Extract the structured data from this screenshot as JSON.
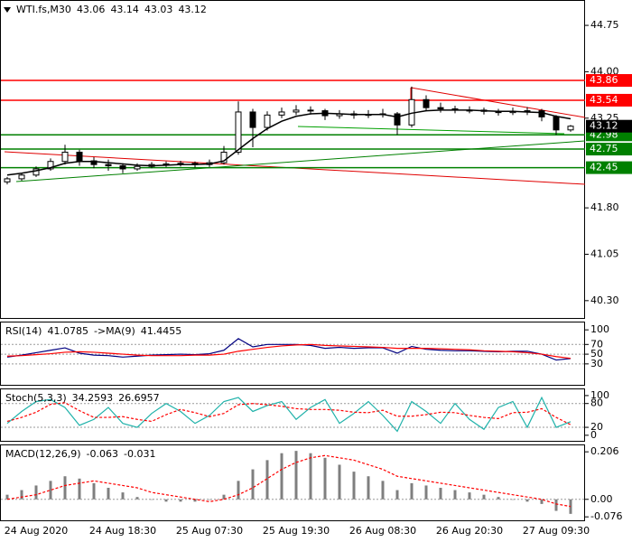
{
  "chart_data": [
    {
      "type": "candlestick",
      "title": "WTI.fs,M30",
      "categories": [
        null,
        null,
        "24 Aug 2020",
        null,
        null,
        null,
        null,
        null,
        "24 Aug 18:30",
        null,
        null,
        null,
        null,
        null,
        "25 Aug 07:30",
        null,
        null,
        null,
        null,
        null,
        "25 Aug 19:30",
        null,
        null,
        null,
        null,
        null,
        "26 Aug 08:30",
        null,
        null,
        null,
        null,
        null,
        "26 Aug 20:30",
        null,
        null,
        null,
        null,
        null,
        "27 Aug 09:30",
        null
      ],
      "open": [
        42.22,
        42.27,
        42.33,
        42.43,
        42.55,
        42.7,
        42.56,
        42.5,
        42.48,
        42.43,
        42.47,
        42.5,
        42.51,
        42.52,
        42.5,
        42.53,
        42.7,
        43.35,
        43.1,
        43.3,
        43.35,
        43.38,
        43.37,
        43.29,
        43.32,
        43.3,
        43.31,
        43.32,
        43.14,
        43.55,
        43.42,
        43.4,
        43.38,
        43.38,
        43.36,
        43.34,
        43.36,
        43.37,
        43.27,
        43.06
      ],
      "high": [
        42.3,
        42.36,
        42.47,
        42.6,
        42.82,
        42.74,
        42.62,
        42.58,
        42.52,
        42.52,
        42.54,
        42.55,
        42.56,
        42.55,
        42.58,
        42.8,
        43.52,
        43.4,
        43.36,
        43.42,
        43.46,
        43.44,
        43.4,
        43.38,
        43.37,
        43.38,
        43.4,
        43.35,
        43.76,
        43.62,
        43.5,
        43.45,
        43.44,
        43.42,
        43.4,
        43.42,
        43.43,
        43.4,
        43.3,
        43.14
      ],
      "low": [
        42.18,
        42.24,
        42.3,
        42.4,
        42.5,
        42.48,
        42.44,
        42.4,
        42.36,
        42.4,
        42.44,
        42.46,
        42.47,
        42.45,
        42.46,
        42.5,
        42.66,
        42.78,
        43.05,
        43.25,
        43.3,
        43.31,
        43.22,
        43.24,
        43.24,
        43.25,
        43.26,
        42.98,
        43.1,
        43.36,
        43.34,
        43.33,
        43.33,
        43.31,
        43.29,
        43.3,
        43.3,
        43.2,
        42.98,
        43.03
      ],
      "close": [
        42.27,
        42.33,
        42.43,
        42.55,
        42.7,
        42.56,
        42.5,
        42.48,
        42.43,
        42.47,
        42.5,
        42.51,
        42.52,
        42.5,
        42.53,
        42.7,
        43.35,
        43.1,
        43.3,
        43.35,
        43.38,
        43.37,
        43.29,
        43.32,
        43.3,
        43.31,
        43.32,
        43.14,
        43.55,
        43.42,
        43.4,
        43.38,
        43.38,
        43.36,
        43.34,
        43.36,
        43.37,
        43.27,
        43.06,
        43.12
      ],
      "lines": [
        {
          "color": "#000000",
          "values": [
            42.33,
            42.36,
            42.4,
            42.45,
            42.52,
            42.55,
            42.55,
            42.53,
            42.51,
            42.49,
            42.48,
            42.49,
            42.5,
            42.5,
            42.51,
            42.56,
            42.74,
            42.92,
            43.08,
            43.2,
            43.28,
            43.32,
            43.33,
            43.32,
            43.31,
            43.31,
            43.31,
            43.27,
            43.33,
            43.37,
            43.38,
            43.38,
            43.38,
            43.37,
            43.36,
            43.36,
            43.35,
            43.34,
            43.28,
            43.24
          ]
        }
      ],
      "levels": [
        {
          "value": 43.86,
          "color": "#ff0000"
        },
        {
          "value": 43.54,
          "color": "#ff0000"
        },
        {
          "value": 42.98,
          "color": "#008000"
        },
        {
          "value": 42.75,
          "color": "#008000"
        },
        {
          "value": 42.45,
          "color": "#008000"
        }
      ],
      "ylim": [
        40.02,
        45.16
      ],
      "yticks": [
        {
          "value": 40.3,
          "label": "40.30"
        },
        41.05,
        {
          "value": 41.8,
          "label": "41.80"
        },
        43.25,
        {
          "value": 44,
          "label": "44.00"
        },
        44.75
      ]
    },
    {
      "type": "line",
      "series": [
        {
          "name": "RSI(14)",
          "color": "#000080",
          "values": [
            44,
            48,
            53,
            58,
            63,
            52,
            48,
            47,
            44,
            46,
            48,
            49,
            50,
            49,
            51,
            58,
            82,
            65,
            70,
            70,
            70,
            68,
            62,
            64,
            62,
            63,
            63,
            52,
            66,
            60,
            58,
            57,
            57,
            56,
            55,
            56,
            56,
            50,
            38,
            41.0785
          ]
        },
        {
          "name": "->MA(9)",
          "color": "#ff0000",
          "values": [
            46,
            47,
            49,
            51,
            54,
            55,
            54,
            52,
            50,
            48,
            47,
            47,
            47,
            48,
            48,
            50,
            56,
            60,
            64,
            67,
            69,
            70,
            68,
            67,
            66,
            65,
            64,
            62,
            62,
            62,
            61,
            60,
            59,
            57,
            56,
            55,
            53,
            50,
            45,
            41.4455
          ]
        }
      ],
      "ylim": [
        -13,
        117
      ],
      "yticks": [
        30,
        50,
        70,
        100
      ],
      "levels": [
        30,
        50,
        70
      ]
    },
    {
      "type": "line",
      "title": "Stoch(5,3,3)",
      "series": [
        {
          "color": "#20b2aa",
          "values": [
            30,
            60,
            85,
            90,
            70,
            25,
            40,
            70,
            30,
            20,
            55,
            80,
            60,
            30,
            50,
            85,
            95,
            60,
            75,
            85,
            40,
            70,
            90,
            30,
            55,
            85,
            50,
            10,
            85,
            60,
            30,
            80,
            40,
            15,
            70,
            85,
            20,
            95,
            20,
            34.2593
          ]
        },
        {
          "color": "#ff0000",
          "dash": true,
          "values": [
            35,
            45,
            58,
            78,
            82,
            62,
            45,
            45,
            47,
            40,
            35,
            52,
            65,
            57,
            47,
            55,
            77,
            80,
            77,
            73,
            67,
            65,
            65,
            63,
            58,
            57,
            63,
            48,
            48,
            52,
            58,
            57,
            50,
            45,
            42,
            57,
            58,
            67,
            45,
            26.6957
          ]
        }
      ],
      "ylim": [
        -14,
        118
      ],
      "yticks": [
        0,
        20,
        80,
        100
      ],
      "levels": [
        20,
        80
      ]
    },
    {
      "type": "macd",
      "title": "MACD(12,26,9)",
      "series": [
        {
          "color": "#7f7f7f",
          "values": [
            0.02,
            0.04,
            0.06,
            0.08,
            0.1,
            0.09,
            0.07,
            0.05,
            0.03,
            0.01,
            0.0,
            -0.01,
            -0.01,
            -0.01,
            0.0,
            0.02,
            0.08,
            0.13,
            0.17,
            0.2,
            0.21,
            0.2,
            0.18,
            0.15,
            0.12,
            0.1,
            0.08,
            0.04,
            0.07,
            0.06,
            0.05,
            0.04,
            0.03,
            0.02,
            0.01,
            0.0,
            -0.01,
            -0.02,
            -0.05,
            -0.063
          ]
        },
        {
          "color": "#ff0000",
          "dash": true,
          "values": [
            0.0,
            0.01,
            0.02,
            0.04,
            0.06,
            0.07,
            0.08,
            0.07,
            0.06,
            0.05,
            0.03,
            0.02,
            0.01,
            0.0,
            -0.01,
            0.0,
            0.02,
            0.05,
            0.09,
            0.13,
            0.16,
            0.18,
            0.19,
            0.18,
            0.17,
            0.15,
            0.13,
            0.1,
            0.09,
            0.08,
            0.07,
            0.06,
            0.05,
            0.04,
            0.03,
            0.02,
            0.01,
            0.0,
            -0.02,
            -0.031
          ]
        }
      ],
      "ylim": [
        -0.091,
        0.238
      ],
      "yticks": [
        -0.076,
        {
          "value": 0,
          "label": "0.00"
        },
        0.206
      ],
      "levels": [
        0
      ]
    }
  ]
}
